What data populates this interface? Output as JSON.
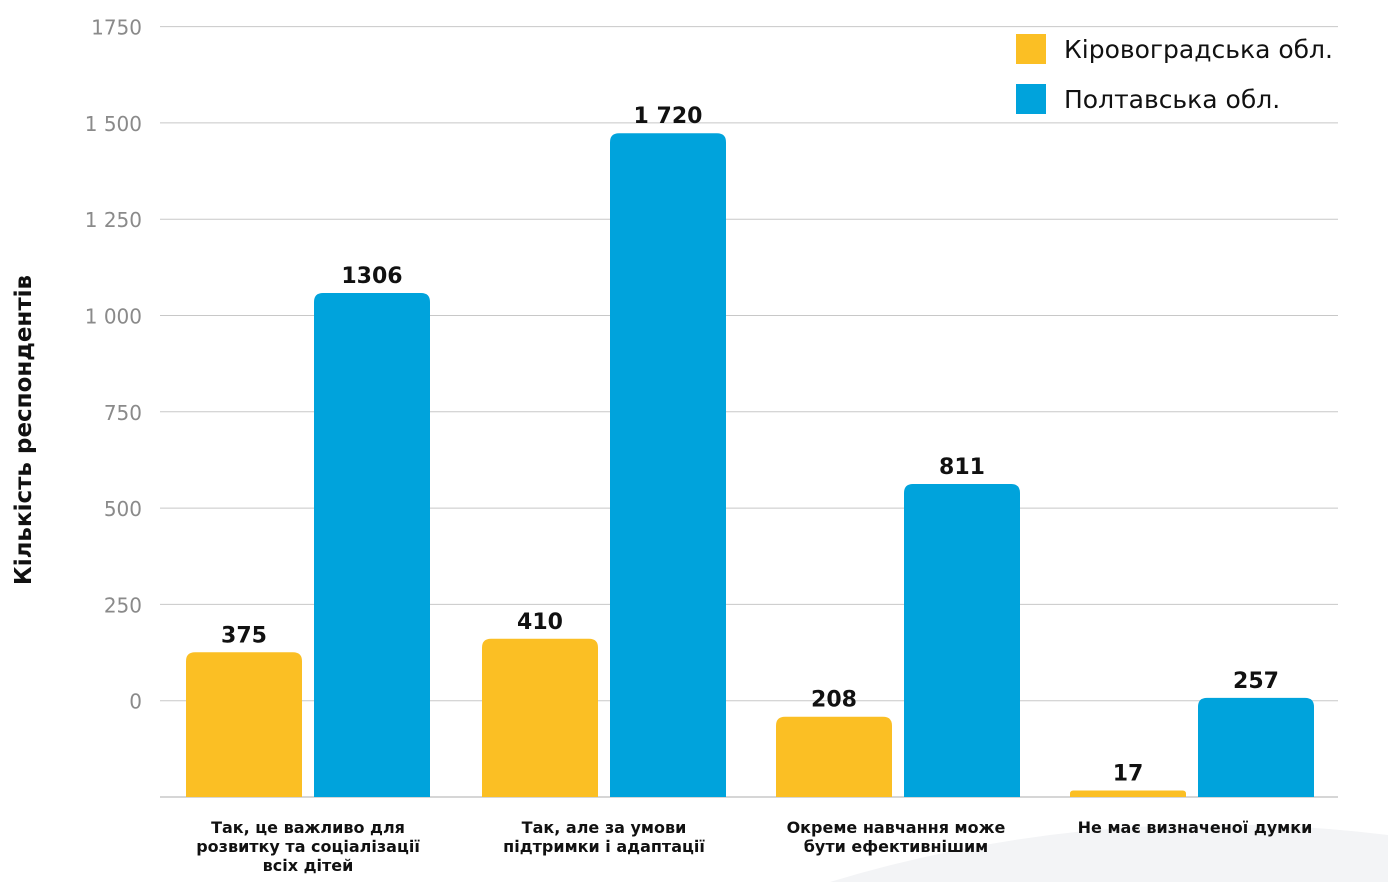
{
  "chart_data": {
    "type": "bar",
    "ylabel": "Кількість респондентів",
    "y_tick_labels": [
      "0",
      "250",
      "500",
      "750",
      "1 000",
      "1 250",
      "1 500",
      "1750"
    ],
    "categories": [
      "Так, це важливо для розвитку та соціалізації всіх дітей",
      "Так, але за умови підтримки і адаптації",
      "Окреме навчання може бути ефективнішим",
      "Не має визначеної думки"
    ],
    "series": [
      {
        "name": "Кіровоградська обл.",
        "color": "#FBBF24",
        "values": [
          375,
          410,
          208,
          17
        ],
        "labels": [
          "375",
          "410",
          "208",
          "17"
        ]
      },
      {
        "name": "Полтавська обл.",
        "color": "#00A3DC",
        "values": [
          1306,
          1720,
          811,
          257
        ],
        "labels": [
          "1306",
          "1 720",
          "811",
          "257"
        ]
      }
    ],
    "legend_position": "top-right",
    "grid": true
  }
}
